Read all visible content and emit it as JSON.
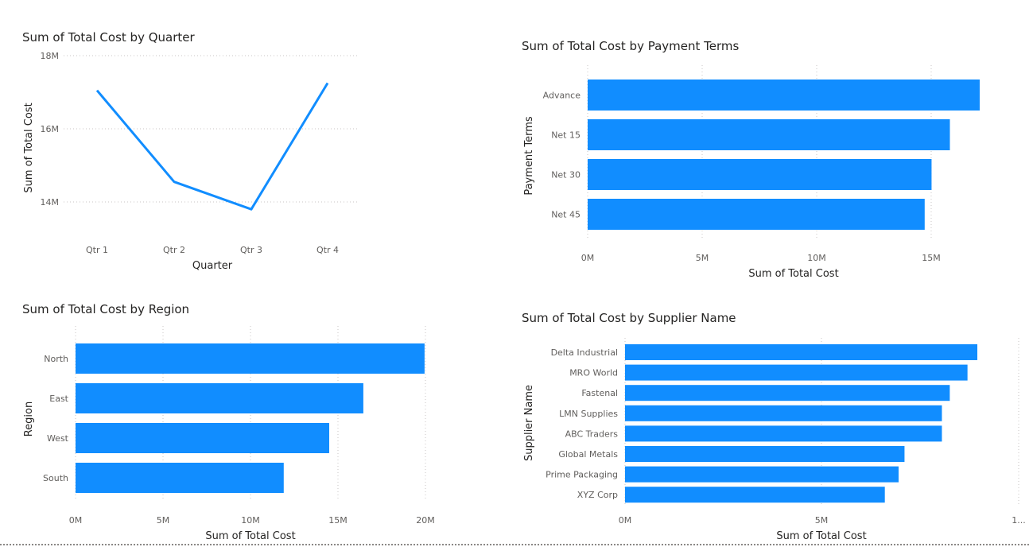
{
  "colors": {
    "series": "#118DFF",
    "grid": "#C8C6C4",
    "tick_text": "#605E5C",
    "title_text": "#252423"
  },
  "chart_data": [
    {
      "id": "quarter",
      "type": "line",
      "title": "Sum of Total Cost by Quarter",
      "xlabel": "Quarter",
      "ylabel": "Sum of Total Cost",
      "categories": [
        "Qtr 1",
        "Qtr 2",
        "Qtr 3",
        "Qtr 4"
      ],
      "values": [
        17.05,
        14.55,
        13.8,
        17.25
      ],
      "yticks": [
        "14M",
        "16M",
        "18M"
      ],
      "ylim": [
        13.8,
        18
      ],
      "grid": true
    },
    {
      "id": "payment",
      "type": "bar",
      "orientation": "horizontal",
      "title": "Sum of Total Cost by Payment Terms",
      "xlabel": "Sum of Total Cost",
      "ylabel": "Payment Terms",
      "categories": [
        "Advance",
        "Net 15",
        "Net 30",
        "Net 45"
      ],
      "values": [
        17.1,
        15.8,
        15.0,
        14.7
      ],
      "xticks": [
        "0M",
        "5M",
        "10M",
        "15M"
      ],
      "xlim": [
        0,
        17.1
      ],
      "grid": true
    },
    {
      "id": "region",
      "type": "bar",
      "orientation": "horizontal",
      "title": "Sum of Total Cost by Region",
      "xlabel": "Sum of Total Cost",
      "ylabel": "Region",
      "categories": [
        "North",
        "East",
        "West",
        "South"
      ],
      "values": [
        19.95,
        16.45,
        14.5,
        11.9
      ],
      "xticks": [
        "0M",
        "5M",
        "10M",
        "15M",
        "20M"
      ],
      "xlim": [
        0,
        20
      ],
      "grid": true
    },
    {
      "id": "supplier",
      "type": "bar",
      "orientation": "horizontal",
      "title": "Sum of Total Cost by Supplier Name",
      "xlabel": "Sum of Total Cost",
      "ylabel": "Supplier Name",
      "categories": [
        "Delta Industrial",
        "MRO World",
        "Fastenal",
        "LMN Supplies",
        "ABC Traders",
        "Global Metals",
        "Prime Packaging",
        "XYZ Corp"
      ],
      "values": [
        8.95,
        8.7,
        8.25,
        8.05,
        8.05,
        7.1,
        6.95,
        6.6
      ],
      "xticks": [
        "0M",
        "5M",
        "1..."
      ],
      "xlim": [
        0,
        10
      ],
      "grid": true
    }
  ]
}
